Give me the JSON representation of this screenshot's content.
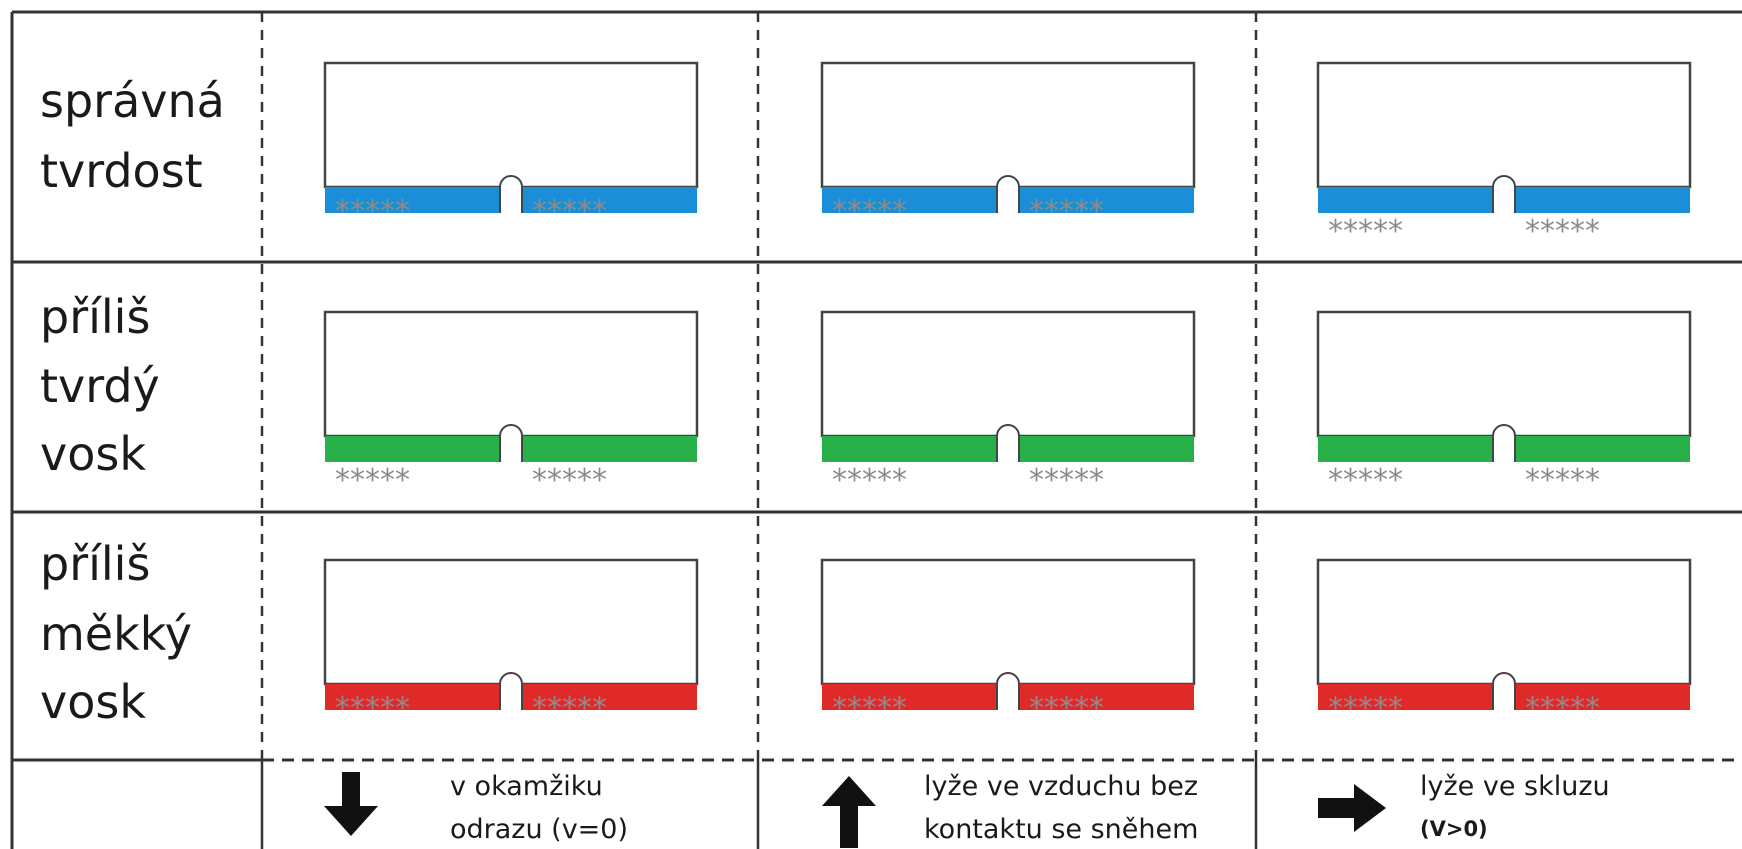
{
  "rows": [
    {
      "label_lines": [
        "správná",
        "tvrdost"
      ],
      "wax_color": "#1a8fd8"
    },
    {
      "label_lines": [
        "příliš",
        "tvrdý",
        "vosk"
      ],
      "wax_color": "#28b04a"
    },
    {
      "label_lines": [
        "příliš",
        "měkký",
        "vosk"
      ],
      "wax_color": "#e02a2a"
    }
  ],
  "columns": [
    {
      "arrow": "arrow-down-icon",
      "caption_lines": [
        "v okamžiku",
        "odrazu (v=0)"
      ]
    },
    {
      "arrow": "arrow-up-icon",
      "caption_lines": [
        "lyže ve vzduchu bez",
        "kontaktu se sněhem"
      ]
    },
    {
      "arrow": "arrow-right-icon",
      "caption_lines": [
        "lyže ve skluzu",
        "(V>0)"
      ]
    }
  ],
  "snow_glyphs": "*****",
  "cells": [
    [
      "embedded",
      "embedded",
      "below"
    ],
    [
      "below",
      "below",
      "below"
    ],
    [
      "embedded",
      "embedded",
      "embedded"
    ]
  ]
}
